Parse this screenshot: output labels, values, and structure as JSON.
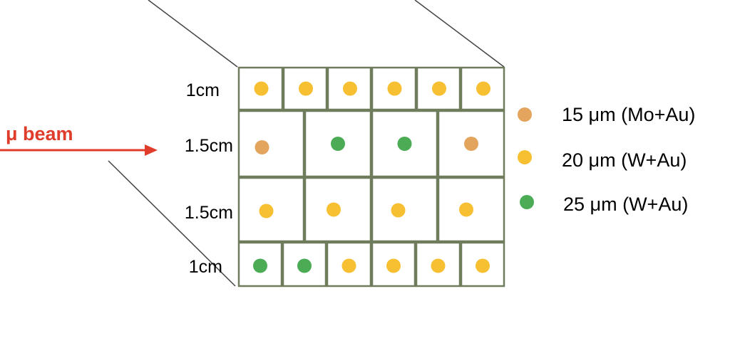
{
  "colors": {
    "orange": "#E3A55D",
    "yellow": "#F6C032",
    "green": "#4CAB55",
    "grid": "#6F7D5C",
    "beam": "#E03C2C",
    "perspective_lines": "#444444"
  },
  "beam": {
    "label": "μ beam"
  },
  "rows": [
    {
      "label": "1cm",
      "cells": [
        "yellow",
        "yellow",
        "yellow",
        "yellow",
        "yellow",
        "yellow"
      ]
    },
    {
      "label": "1.5cm",
      "cells": [
        "orange",
        "green",
        "green",
        "orange"
      ]
    },
    {
      "label": "1.5cm",
      "cells": [
        "yellow",
        "yellow",
        "yellow",
        "yellow"
      ]
    },
    {
      "label": "1cm",
      "cells": [
        "green",
        "green",
        "yellow",
        "yellow",
        "yellow",
        "yellow"
      ]
    }
  ],
  "legend": [
    {
      "color": "orange",
      "label": "15 μm (Mo+Au)"
    },
    {
      "color": "yellow",
      "label": "20 μm (W+Au)"
    },
    {
      "color": "green",
      "label": "25 μm (W+Au)"
    }
  ]
}
